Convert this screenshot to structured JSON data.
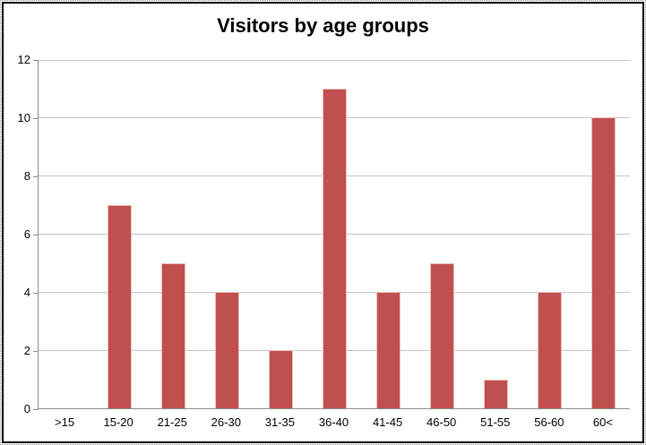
{
  "chart_data": {
    "type": "bar",
    "title": "Visitors by age groups",
    "categories": [
      ">15",
      "15-20",
      "21-25",
      "26-30",
      "31-35",
      "36-40",
      "41-45",
      "46-50",
      "51-55",
      "56-60",
      "60<"
    ],
    "values": [
      0,
      7,
      5,
      4,
      2,
      11,
      4,
      5,
      1,
      4,
      10
    ],
    "xlabel": "",
    "ylabel": "",
    "ylim": [
      0,
      12
    ],
    "yticks": [
      0,
      2,
      4,
      6,
      8,
      10,
      12
    ],
    "grid": "horizontal-only",
    "legend": "none",
    "bar_color": "#C0504D",
    "bar_edge_color": "#ECC2C0",
    "gridline_color": "#C6C6C6",
    "axis_color": "#8C8C8C",
    "frame_border_color": "#000000",
    "title_color": "#000000",
    "tick_label_color": "#000000"
  }
}
